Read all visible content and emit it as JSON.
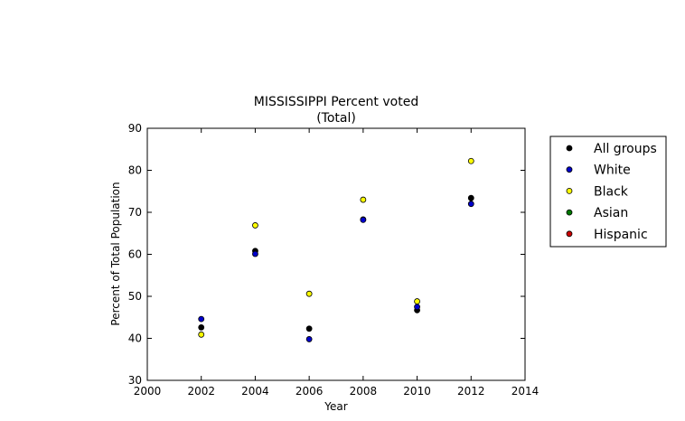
{
  "chart_data": {
    "type": "scatter",
    "title": "MISSISSIPPI Percent voted",
    "subtitle": "(Total)",
    "xlabel": "Year",
    "ylabel": "Percent of Total Population",
    "xlim": [
      2000,
      2014
    ],
    "ylim": [
      30,
      90
    ],
    "xticks": [
      2000,
      2002,
      2004,
      2006,
      2008,
      2010,
      2012,
      2014
    ],
    "yticks": [
      30,
      40,
      50,
      60,
      70,
      80,
      90
    ],
    "grid": false,
    "legend_position": "outside-right",
    "series": [
      {
        "name": "All groups",
        "color": "#000000",
        "x": [
          2002,
          2004,
          2006,
          2008,
          2010,
          2012
        ],
        "y": [
          42.6,
          60.8,
          42.3,
          68.3,
          46.7,
          73.4
        ]
      },
      {
        "name": "White",
        "color": "#0000cc",
        "x": [
          2002,
          2004,
          2006,
          2008,
          2010,
          2012
        ],
        "y": [
          44.6,
          60.1,
          39.8,
          68.2,
          47.5,
          72.0
        ]
      },
      {
        "name": "Black",
        "color": "#ffff00",
        "x": [
          2002,
          2004,
          2006,
          2008,
          2010,
          2012
        ],
        "y": [
          40.9,
          66.9,
          50.6,
          73.0,
          48.8,
          82.2
        ]
      },
      {
        "name": "Asian",
        "color": "#007700",
        "x": [],
        "y": []
      },
      {
        "name": "Hispanic",
        "color": "#cc0000",
        "x": [],
        "y": []
      }
    ]
  }
}
